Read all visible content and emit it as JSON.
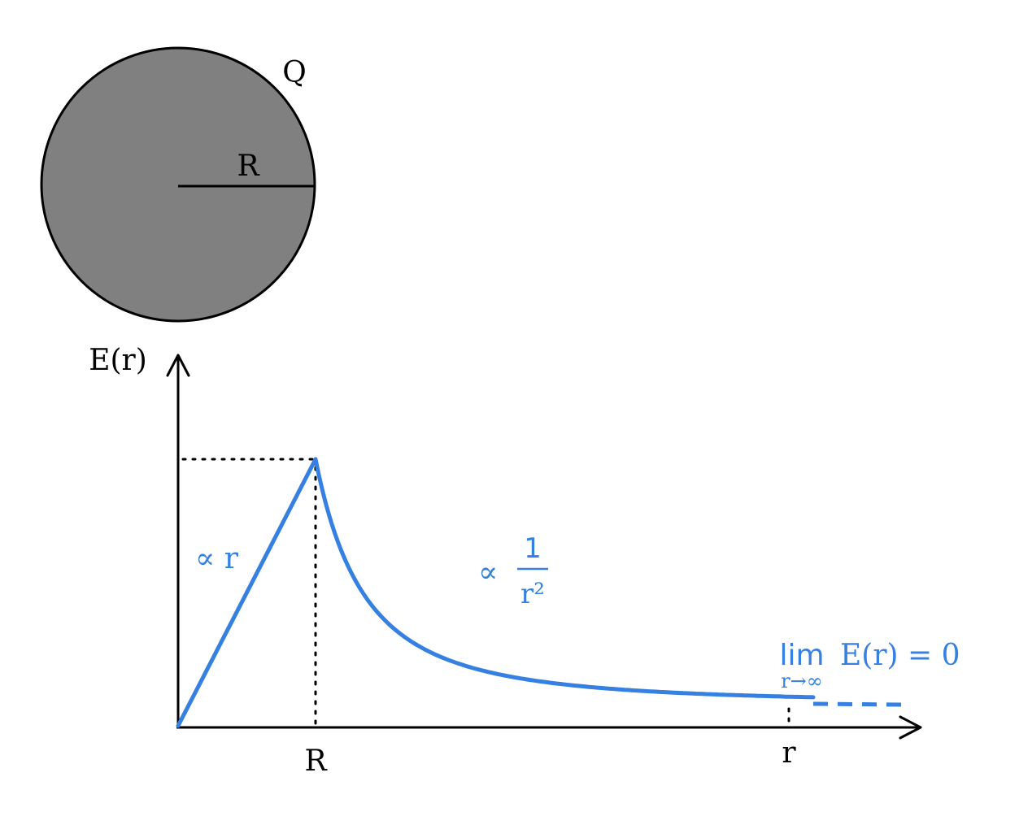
{
  "colors": {
    "sphere_fill": "#808080",
    "outline": "#000000",
    "curve": "#3580e0"
  },
  "sphere": {
    "charge_label": "Q",
    "radius_label": "R"
  },
  "axes": {
    "y_label": "E(r)",
    "x_tick_R": "R",
    "x_tick_r": "r"
  },
  "annotations": {
    "inside_proportional": "∝ r",
    "outside_proportional_symbol": "∝",
    "outside_numerator": "1",
    "outside_denominator": "r²",
    "limit_word": "lim",
    "limit_subscript": "r→∞",
    "limit_expression": "E(r) = 0"
  }
}
